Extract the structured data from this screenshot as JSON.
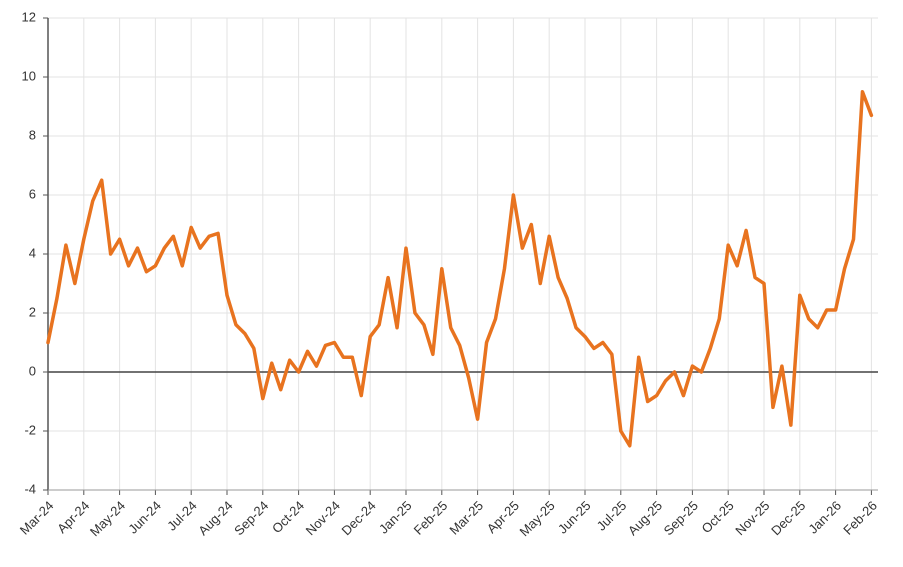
{
  "chart_data": {
    "type": "line",
    "categories": [
      "Mar-24",
      null,
      null,
      null,
      "Apr-24",
      null,
      null,
      null,
      "May-24",
      null,
      null,
      null,
      "Jun-24",
      null,
      null,
      null,
      "Jul-24",
      null,
      null,
      null,
      "Aug-24",
      null,
      null,
      null,
      "Sep-24",
      null,
      null,
      null,
      "Oct-24",
      null,
      null,
      null,
      "Nov-24",
      null,
      null,
      null,
      "Dec-24",
      null,
      null,
      null,
      "Jan-25",
      null,
      null,
      null,
      "Feb-25",
      null,
      null,
      null,
      "Mar-25",
      null,
      null,
      null,
      "Apr-25",
      null,
      null,
      null,
      "May-25",
      null,
      null,
      null,
      "Jun-25",
      null,
      null,
      null,
      "Jul-25",
      null,
      null,
      null,
      "Aug-25",
      null,
      null,
      null,
      "Sep-25",
      null,
      null,
      null,
      "Oct-25",
      null,
      null,
      null,
      "Nov-25",
      null,
      null,
      null,
      "Dec-25",
      null,
      null,
      null,
      "Jan-26",
      null,
      null,
      null,
      "Feb-26"
    ],
    "values": [
      1.0,
      2.5,
      4.3,
      3.0,
      4.5,
      5.8,
      6.5,
      4.0,
      4.5,
      3.6,
      4.2,
      3.4,
      3.6,
      4.2,
      4.6,
      3.6,
      4.9,
      4.2,
      4.6,
      4.7,
      2.6,
      1.6,
      1.3,
      0.8,
      -0.9,
      0.3,
      -0.6,
      0.4,
      0.0,
      0.7,
      0.2,
      0.9,
      1.0,
      0.5,
      0.5,
      -0.8,
      1.2,
      1.6,
      3.2,
      1.5,
      4.2,
      2.0,
      1.6,
      0.6,
      3.5,
      1.5,
      0.9,
      -0.2,
      -1.6,
      1.0,
      1.8,
      3.5,
      6.0,
      4.2,
      5.0,
      3.0,
      4.6,
      3.2,
      2.5,
      1.5,
      1.2,
      0.8,
      1.0,
      0.6,
      -2.0,
      -2.5,
      0.5,
      -1.0,
      -0.8,
      -0.3,
      0.0,
      -0.8,
      0.2,
      0.0,
      0.8,
      1.8,
      4.3,
      3.6,
      4.8,
      3.2,
      3.0,
      -1.2,
      0.2,
      -1.8,
      2.6,
      1.8,
      1.5,
      2.1,
      2.1,
      3.5,
      4.5,
      9.5,
      8.7
    ],
    "color": "#e8731f",
    "ylim": [
      -4,
      12
    ],
    "yticks": [
      -4,
      -2,
      0,
      2,
      4,
      6,
      8,
      10,
      12
    ],
    "grid": true
  }
}
